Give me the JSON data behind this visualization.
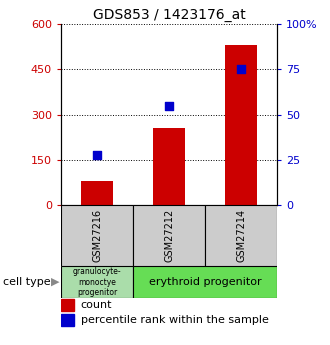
{
  "title": "GDS853 / 1423176_at",
  "samples": [
    "GSM27216",
    "GSM27212",
    "GSM27214"
  ],
  "bar_counts": [
    80,
    255,
    530
  ],
  "percentile_ranks": [
    28,
    55,
    75
  ],
  "bar_color": "#cc0000",
  "dot_color": "#0000cc",
  "left_ylim": [
    0,
    600
  ],
  "right_ylim": [
    0,
    100
  ],
  "left_yticks": [
    0,
    150,
    300,
    450,
    600
  ],
  "right_yticks": [
    0,
    25,
    50,
    75,
    100
  ],
  "right_yticklabels": [
    "0",
    "25",
    "50",
    "75",
    "100%"
  ],
  "sample_bg_color": "#cccccc",
  "cell_type_1_color": "#aaddaa",
  "cell_type_2_color": "#66dd55",
  "legend_count_label": "count",
  "legend_pct_label": "percentile rank within the sample",
  "left_tick_color": "#cc0000",
  "right_tick_color": "#0000cc",
  "bar_width": 0.45,
  "dot_size": 35
}
